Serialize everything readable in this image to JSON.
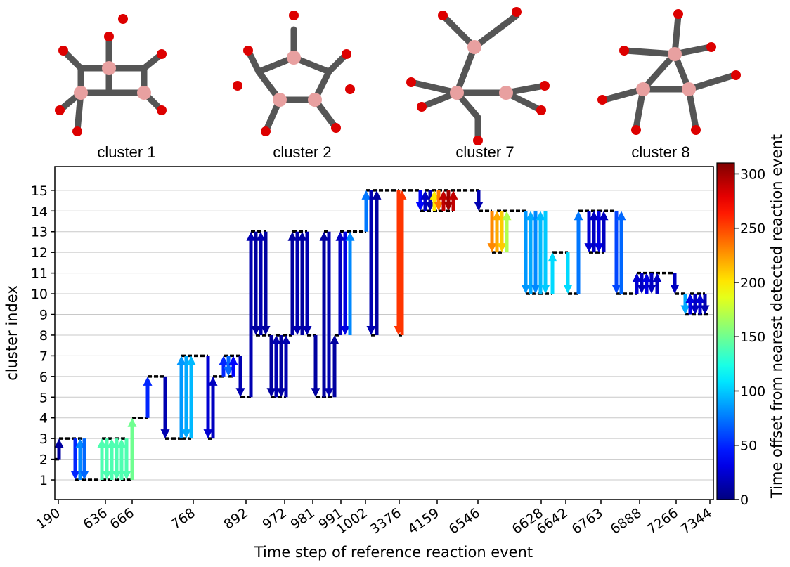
{
  "structures": [
    "cluster 1",
    "cluster 2",
    "cluster 7",
    "cluster 8"
  ],
  "chart_data": {
    "type": "transition",
    "xlabel": "Time step of reference reaction event",
    "ylabel": "cluster index",
    "xlim": [
      0,
      93.7
    ],
    "xticks": [
      {
        "value": 0.5,
        "label": "190"
      },
      {
        "value": 7.2,
        "label": "636"
      },
      {
        "value": 11,
        "label": "666"
      },
      {
        "value": 19.7,
        "label": "768"
      },
      {
        "value": 27.2,
        "label": "892"
      },
      {
        "value": 32.7,
        "label": "972"
      },
      {
        "value": 36.7,
        "label": "981"
      },
      {
        "value": 40.7,
        "label": "991"
      },
      {
        "value": 44.2,
        "label": "1002"
      },
      {
        "value": 49,
        "label": "3376"
      },
      {
        "value": 54.4,
        "label": "4159"
      },
      {
        "value": 60.2,
        "label": "6546"
      },
      {
        "value": 69.2,
        "label": "6628"
      },
      {
        "value": 72.7,
        "label": "6642"
      },
      {
        "value": 77.7,
        "label": "6763"
      },
      {
        "value": 83.2,
        "label": "6888"
      },
      {
        "value": 88.4,
        "label": "7266"
      },
      {
        "value": 93.2,
        "label": "7344"
      }
    ],
    "ylim": [
      0.05,
      16.15
    ],
    "yticks": [
      1,
      2,
      3,
      4,
      5,
      6,
      7,
      8,
      9,
      10,
      11,
      12,
      13,
      14,
      15
    ],
    "grid": true,
    "colorbar": {
      "label": "Time offset from nearest detected reaction event",
      "colormap": "jet",
      "lim": [
        0,
        310
      ],
      "ticks": [
        0,
        50,
        100,
        150,
        200,
        250,
        300
      ]
    },
    "segments": {
      "x0": [
        0,
        0.6,
        2.9,
        6.7,
        6.7,
        11,
        13.2,
        15.7,
        18,
        18,
        21.8,
        22.5,
        24,
        24.7,
        26.4,
        27.9,
        28.6,
        30.8,
        31.5,
        33.8,
        35.9,
        37.1,
        38.3,
        39.8,
        40.6,
        44.3,
        45,
        48.9,
        49.4,
        52,
        52.7,
        60.3,
        62.2,
        62.9,
        67,
        70.8,
        73,
        74.5,
        76,
        79.9,
        82.8,
        88.2,
        89.7,
        90.4
      ],
      "x1": [
        0.6,
        4.2,
        6.7,
        10.2,
        11,
        13.2,
        15.7,
        18,
        21.8,
        19.4,
        22.5,
        24,
        26.4,
        25.4,
        27.9,
        30,
        30.8,
        32.9,
        33.8,
        35.9,
        37.1,
        39.8,
        39,
        40.6,
        44.3,
        48.9,
        45.8,
        49.4,
        52,
        56.7,
        60.3,
        62.2,
        63.6,
        67,
        70.8,
        73,
        74.5,
        79.9,
        78.1,
        82.8,
        88.2,
        89.7,
        93.4,
        92.5
      ],
      "levels": [
        2,
        3,
        1,
        3,
        1,
        4,
        6,
        3,
        7,
        3,
        3,
        6,
        7,
        6,
        5,
        13,
        8,
        5,
        8,
        13,
        8,
        5,
        13,
        8,
        13,
        15,
        8,
        8,
        15,
        14,
        15,
        14,
        12,
        14,
        10,
        12,
        10,
        14,
        12,
        10,
        11,
        10,
        9,
        10
      ]
    },
    "arrows": {
      "x": [
        0.6,
        2.9,
        3.6,
        4.2,
        6.7,
        7.4,
        8.1,
        8.8,
        9.5,
        10.2,
        11,
        13.2,
        15.7,
        18,
        18.7,
        19.4,
        21.8,
        22.5,
        24,
        24.7,
        25.4,
        26.4,
        27.9,
        28.6,
        29.3,
        30,
        30.8,
        31.5,
        32.2,
        32.9,
        33.8,
        34.5,
        35.2,
        35.9,
        37.1,
        38.3,
        39,
        39.8,
        40.6,
        41.3,
        42,
        44.3,
        45,
        45.8,
        48.9,
        49.4,
        52,
        52.7,
        53.4,
        54,
        54.6,
        55.3,
        56,
        56.7,
        60.3,
        62.2,
        62.9,
        63.6,
        64.3,
        67,
        67.7,
        68.4,
        69.1,
        69.8,
        70.8,
        73,
        74.5,
        76,
        76.7,
        77.4,
        78.1,
        79.9,
        80.6,
        82.8,
        83.5,
        84.2,
        84.9,
        85.7,
        88.2,
        89.7,
        90.4,
        91.1,
        91.8,
        92.5
      ],
      "from": [
        2,
        3,
        1,
        3,
        1,
        3,
        1,
        3,
        1,
        3,
        1,
        4,
        6,
        3,
        7,
        3,
        7,
        3,
        6,
        7,
        6,
        7,
        5,
        13,
        8,
        13,
        8,
        5,
        8,
        5,
        8,
        13,
        8,
        13,
        8,
        5,
        13,
        5,
        8,
        13,
        8,
        13,
        15,
        8,
        15,
        8,
        15,
        14,
        15,
        14,
        15,
        14,
        15,
        14,
        15,
        14,
        12,
        14,
        12,
        14,
        10,
        14,
        10,
        14,
        10,
        12,
        10,
        14,
        12,
        14,
        12,
        14,
        10,
        10,
        11,
        10,
        11,
        10,
        11,
        10,
        9,
        10,
        9,
        10
      ],
      "to": [
        3,
        1,
        3,
        1,
        3,
        1,
        3,
        1,
        3,
        1,
        4,
        6,
        3,
        7,
        3,
        7,
        3,
        6,
        7,
        6,
        7,
        5,
        13,
        8,
        13,
        8,
        5,
        8,
        5,
        8,
        13,
        8,
        13,
        8,
        5,
        13,
        5,
        8,
        13,
        8,
        13,
        15,
        8,
        15,
        8,
        15,
        14,
        15,
        14,
        15,
        14,
        15,
        14,
        15,
        14,
        12,
        14,
        12,
        14,
        10,
        14,
        10,
        14,
        10,
        12,
        10,
        14,
        12,
        14,
        12,
        14,
        10,
        14,
        11,
        10,
        11,
        10,
        11,
        10,
        9,
        10,
        9,
        10,
        9
      ],
      "values": [
        10,
        50,
        80,
        70,
        140,
        140,
        140,
        140,
        140,
        140,
        150,
        50,
        15,
        85,
        90,
        95,
        25,
        20,
        50,
        70,
        40,
        15,
        15,
        10,
        15,
        10,
        10,
        15,
        10,
        15,
        10,
        15,
        10,
        15,
        10,
        10,
        15,
        10,
        20,
        30,
        80,
        75,
        15,
        10,
        255,
        255,
        40,
        20,
        15,
        200,
        235,
        290,
        300,
        290,
        15,
        230,
        220,
        210,
        170,
        85,
        90,
        80,
        95,
        100,
        105,
        105,
        75,
        25,
        20,
        30,
        20,
        60,
        70,
        25,
        20,
        30,
        20,
        20,
        20,
        90,
        30,
        20,
        25,
        15
      ]
    }
  }
}
